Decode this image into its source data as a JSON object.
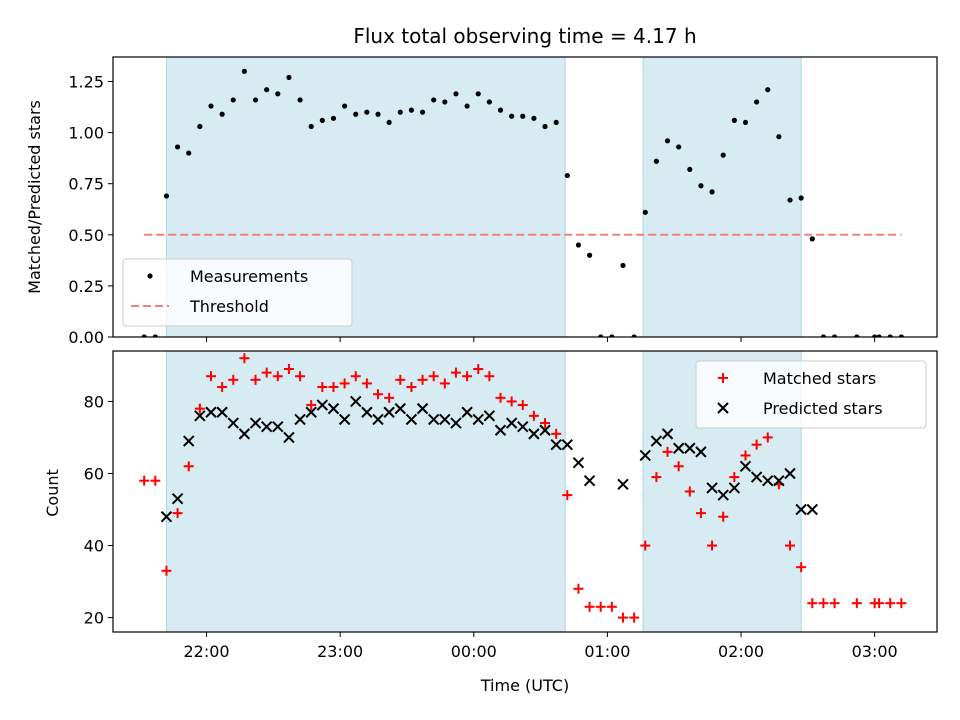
{
  "chart_data": [
    {
      "type": "scatter",
      "panel": "top",
      "title": "Flux total observing time = 4.17 h",
      "ylabel": "Matched/Predicted stars",
      "xlabel": "",
      "ylim": [
        0,
        1.37
      ],
      "yticks": [
        0.0,
        0.25,
        0.5,
        0.75,
        1.0,
        1.25
      ],
      "ytick_labels": [
        "0.00",
        "0.25",
        "0.50",
        "0.75",
        "1.00",
        "1.25"
      ],
      "grid": false,
      "legend_position": "bottom-left",
      "shaded_intervals": [
        [
          "21:42",
          "00:41"
        ],
        [
          "01:16",
          "02:27"
        ]
      ],
      "series": [
        {
          "name": "Measurements",
          "marker": "dot",
          "color": "#000000",
          "points": [
            [
              "21:32",
              0.0
            ],
            [
              "21:37",
              0.0
            ],
            [
              "21:42",
              0.69
            ],
            [
              "21:47",
              0.93
            ],
            [
              "21:52",
              0.9
            ],
            [
              "21:57",
              1.03
            ],
            [
              "22:02",
              1.13
            ],
            [
              "22:07",
              1.09
            ],
            [
              "22:12",
              1.16
            ],
            [
              "22:17",
              1.3
            ],
            [
              "22:22",
              1.16
            ],
            [
              "22:27",
              1.21
            ],
            [
              "22:32",
              1.19
            ],
            [
              "22:37",
              1.27
            ],
            [
              "22:42",
              1.16
            ],
            [
              "22:47",
              1.03
            ],
            [
              "22:52",
              1.06
            ],
            [
              "22:57",
              1.07
            ],
            [
              "23:02",
              1.13
            ],
            [
              "23:07",
              1.09
            ],
            [
              "23:12",
              1.1
            ],
            [
              "23:17",
              1.09
            ],
            [
              "23:22",
              1.05
            ],
            [
              "23:27",
              1.1
            ],
            [
              "23:32",
              1.11
            ],
            [
              "23:37",
              1.1
            ],
            [
              "23:42",
              1.16
            ],
            [
              "23:47",
              1.15
            ],
            [
              "23:52",
              1.19
            ],
            [
              "23:57",
              1.13
            ],
            [
              "00:02",
              1.19
            ],
            [
              "00:07",
              1.15
            ],
            [
              "00:12",
              1.11
            ],
            [
              "00:17",
              1.08
            ],
            [
              "00:22",
              1.08
            ],
            [
              "00:27",
              1.07
            ],
            [
              "00:32",
              1.03
            ],
            [
              "00:37",
              1.05
            ],
            [
              "00:42",
              0.79
            ],
            [
              "00:47",
              0.45
            ],
            [
              "00:52",
              0.4
            ],
            [
              "00:57",
              0.0
            ],
            [
              "01:02",
              0.0
            ],
            [
              "01:07",
              0.35
            ],
            [
              "01:12",
              0.0
            ],
            [
              "01:17",
              0.61
            ],
            [
              "01:22",
              0.86
            ],
            [
              "01:27",
              0.96
            ],
            [
              "01:32",
              0.93
            ],
            [
              "01:37",
              0.82
            ],
            [
              "01:42",
              0.74
            ],
            [
              "01:47",
              0.71
            ],
            [
              "01:52",
              0.89
            ],
            [
              "01:57",
              1.06
            ],
            [
              "02:02",
              1.05
            ],
            [
              "02:07",
              1.15
            ],
            [
              "02:12",
              1.21
            ],
            [
              "02:17",
              0.98
            ],
            [
              "02:22",
              0.67
            ],
            [
              "02:27",
              0.68
            ],
            [
              "02:32",
              0.48
            ],
            [
              "02:37",
              0.0
            ],
            [
              "02:42",
              0.0
            ],
            [
              "02:52",
              0.0
            ],
            [
              "03:00",
              0.0
            ],
            [
              "03:02",
              0.0
            ],
            [
              "03:07",
              0.0
            ],
            [
              "03:12",
              0.0
            ]
          ]
        },
        {
          "name": "Threshold",
          "marker": "dashed-line",
          "color": "#f08080",
          "points": [
            [
              "21:32",
              0.5
            ],
            [
              "03:12",
              0.5
            ]
          ]
        }
      ]
    },
    {
      "type": "scatter",
      "panel": "bottom",
      "title": "",
      "xlabel": "Time (UTC)",
      "ylabel": "Count",
      "ylim": [
        16,
        94
      ],
      "yticks": [
        20,
        40,
        60,
        80
      ],
      "ytick_labels": [
        "20",
        "40",
        "60",
        "80"
      ],
      "xlim": [
        "21:18",
        "03:28"
      ],
      "xticks": [
        "22:00",
        "23:00",
        "00:00",
        "01:00",
        "02:00",
        "03:00"
      ],
      "grid": false,
      "legend_position": "top-right",
      "shaded_intervals": [
        [
          "21:42",
          "00:41"
        ],
        [
          "01:16",
          "02:27"
        ]
      ],
      "series": [
        {
          "name": "Matched stars",
          "marker": "plus",
          "color": "#ff0000",
          "points": [
            [
              "21:32",
              58
            ],
            [
              "21:37",
              58
            ],
            [
              "21:42",
              33
            ],
            [
              "21:47",
              49
            ],
            [
              "21:52",
              62
            ],
            [
              "21:57",
              78
            ],
            [
              "22:02",
              87
            ],
            [
              "22:07",
              84
            ],
            [
              "22:12",
              86
            ],
            [
              "22:17",
              92
            ],
            [
              "22:22",
              86
            ],
            [
              "22:27",
              88
            ],
            [
              "22:32",
              87
            ],
            [
              "22:37",
              89
            ],
            [
              "22:42",
              87
            ],
            [
              "22:47",
              79
            ],
            [
              "22:52",
              84
            ],
            [
              "22:57",
              84
            ],
            [
              "23:02",
              85
            ],
            [
              "23:07",
              87
            ],
            [
              "23:12",
              85
            ],
            [
              "23:17",
              82
            ],
            [
              "23:22",
              81
            ],
            [
              "23:27",
              86
            ],
            [
              "23:32",
              84
            ],
            [
              "23:37",
              86
            ],
            [
              "23:42",
              87
            ],
            [
              "23:47",
              85
            ],
            [
              "23:52",
              88
            ],
            [
              "23:57",
              87
            ],
            [
              "00:02",
              89
            ],
            [
              "00:07",
              87
            ],
            [
              "00:12",
              81
            ],
            [
              "00:17",
              80
            ],
            [
              "00:22",
              79
            ],
            [
              "00:27",
              76
            ],
            [
              "00:32",
              74
            ],
            [
              "00:37",
              71
            ],
            [
              "00:42",
              54
            ],
            [
              "00:47",
              28
            ],
            [
              "00:52",
              23
            ],
            [
              "00:57",
              23
            ],
            [
              "01:02",
              23
            ],
            [
              "01:07",
              20
            ],
            [
              "01:12",
              20
            ],
            [
              "01:17",
              40
            ],
            [
              "01:22",
              59
            ],
            [
              "01:27",
              66
            ],
            [
              "01:32",
              62
            ],
            [
              "01:37",
              55
            ],
            [
              "01:42",
              49
            ],
            [
              "01:47",
              40
            ],
            [
              "01:52",
              48
            ],
            [
              "01:57",
              59
            ],
            [
              "02:02",
              65
            ],
            [
              "02:07",
              68
            ],
            [
              "02:12",
              70
            ],
            [
              "02:17",
              57
            ],
            [
              "02:22",
              40
            ],
            [
              "02:27",
              34
            ],
            [
              "02:32",
              24
            ],
            [
              "02:37",
              24
            ],
            [
              "02:42",
              24
            ],
            [
              "02:52",
              24
            ],
            [
              "03:00",
              24
            ],
            [
              "03:02",
              24
            ],
            [
              "03:07",
              24
            ],
            [
              "03:12",
              24
            ]
          ]
        },
        {
          "name": "Predicted stars",
          "marker": "x",
          "color": "#000000",
          "points": [
            [
              "21:42",
              48
            ],
            [
              "21:47",
              53
            ],
            [
              "21:52",
              69
            ],
            [
              "21:57",
              76
            ],
            [
              "22:02",
              77
            ],
            [
              "22:07",
              77
            ],
            [
              "22:12",
              74
            ],
            [
              "22:17",
              71
            ],
            [
              "22:22",
              74
            ],
            [
              "22:27",
              73
            ],
            [
              "22:32",
              73
            ],
            [
              "22:37",
              70
            ],
            [
              "22:42",
              75
            ],
            [
              "22:47",
              77
            ],
            [
              "22:52",
              79
            ],
            [
              "22:57",
              78
            ],
            [
              "23:02",
              75
            ],
            [
              "23:07",
              80
            ],
            [
              "23:12",
              77
            ],
            [
              "23:17",
              75
            ],
            [
              "23:22",
              77
            ],
            [
              "23:27",
              78
            ],
            [
              "23:32",
              75
            ],
            [
              "23:37",
              78
            ],
            [
              "23:42",
              75
            ],
            [
              "23:47",
              75
            ],
            [
              "23:52",
              74
            ],
            [
              "23:57",
              77
            ],
            [
              "00:02",
              75
            ],
            [
              "00:07",
              76
            ],
            [
              "00:12",
              72
            ],
            [
              "00:17",
              74
            ],
            [
              "00:22",
              73
            ],
            [
              "00:27",
              71
            ],
            [
              "00:32",
              72
            ],
            [
              "00:37",
              68
            ],
            [
              "00:42",
              68
            ],
            [
              "00:47",
              63
            ],
            [
              "00:52",
              58
            ],
            [
              "01:07",
              57
            ],
            [
              "01:17",
              65
            ],
            [
              "01:22",
              69
            ],
            [
              "01:27",
              71
            ],
            [
              "01:32",
              67
            ],
            [
              "01:37",
              67
            ],
            [
              "01:42",
              66
            ],
            [
              "01:47",
              56
            ],
            [
              "01:52",
              54
            ],
            [
              "01:57",
              56
            ],
            [
              "02:02",
              62
            ],
            [
              "02:07",
              59
            ],
            [
              "02:12",
              58
            ],
            [
              "02:17",
              58
            ],
            [
              "02:22",
              60
            ],
            [
              "02:27",
              50
            ],
            [
              "02:32",
              50
            ]
          ]
        }
      ]
    }
  ],
  "colors": {
    "shade": "#add8e6",
    "axis": "#000000"
  }
}
